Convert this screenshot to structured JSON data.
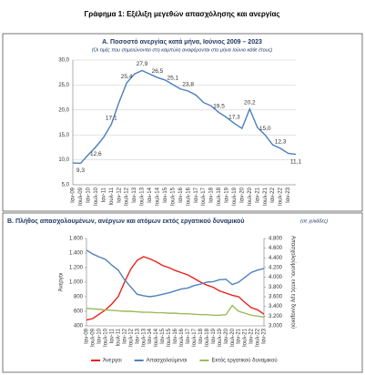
{
  "page_title": "Γράφημα 1: Εξέλιξη μεγεθών απασχόλησης και ανεργίας",
  "chart_data": [
    {
      "type": "line",
      "title": "Α. Ποσοστό ανεργίας κατά μήνα, Ιούνιος 2009 – 2023",
      "subtitle": "(Οι τιμές που σημειώνονται στη καμπύλη αναφέρονται στο μήνα Ιούνιο κάθε έτους)",
      "categories": [
        "Ιαν-09",
        "Ιουλ-09",
        "Ιαν-10",
        "Ιουλ-10",
        "Ιαν-11",
        "Ιουλ-11",
        "Ιαν-12",
        "Ιουλ-12",
        "Ιαν-13",
        "Ιουλ-13",
        "Ιαν-14",
        "Ιουλ-14",
        "Ιαν-15",
        "Ιουλ-15",
        "Ιαν-16",
        "Ιουλ-16",
        "Ιαν-17",
        "Ιουλ-17",
        "Ιαν-18",
        "Ιουλ-18",
        "Ιαν-19",
        "Ιουλ-19",
        "Ιαν-20",
        "Ιουλ-20",
        "Ιαν-21",
        "Ιουλ-21",
        "Ιαν-22",
        "Ιουλ-22",
        "Ιαν-23",
        null
      ],
      "series": [
        {
          "color": "#4a7ebb",
          "values": [
            9.4,
            9.3,
            11.0,
            12.6,
            14.5,
            17.1,
            21.5,
            25.4,
            27.2,
            27.9,
            27.2,
            26.5,
            26.0,
            25.1,
            24.2,
            23.8,
            23.0,
            21.5,
            20.8,
            19.5,
            18.5,
            17.3,
            16.3,
            20.2,
            16.5,
            15.0,
            13.0,
            12.3,
            11.3,
            11.1
          ],
          "value_labels": [
            null,
            "9,3",
            null,
            "12,6",
            null,
            "17,1",
            null,
            "25,4",
            null,
            "27,9",
            null,
            "26,5",
            null,
            "25,1",
            null,
            "23,8",
            null,
            null,
            null,
            "19,5",
            null,
            "17,3",
            null,
            "20,2",
            null,
            "15,0",
            null,
            "12,3",
            null,
            "11,1"
          ]
        }
      ],
      "ylim": [
        5,
        30
      ],
      "yticks": [
        {
          "value": 5,
          "label": "5,0"
        },
        {
          "value": 10,
          "label": "10,0"
        },
        {
          "value": 15,
          "label": "15,0"
        },
        {
          "value": 20,
          "label": "20,0"
        },
        {
          "value": 25,
          "label": "25,0"
        },
        {
          "value": 30,
          "label": "30,0"
        }
      ],
      "grid": true
    },
    {
      "type": "line",
      "title": "Β. Πλήθος απασχολουμένων, ανέργων και ατόμων εκτός εργατικού δυναμικού",
      "subtitle": "(σε χιλιάδες)",
      "y_label": "Άνεργοι",
      "y2_label": "Απασχολούμενοι, εκτός εργ δυναμικού",
      "categories": [
        "Ιαν-09",
        "Ιουλ-09",
        "Ιαν-10",
        "Ιουλ-10",
        "Ιαν-11",
        "Ιουλ-11",
        "Ιαν-12",
        "Ιουλ-12",
        "Ιαν-13",
        "Ιουλ-13",
        "Ιαν-14",
        "Ιουλ-14",
        "Ιαν-15",
        "Ιουλ-15",
        "Ιαν-16",
        "Ιουλ-16",
        "Ιαν-17",
        "Ιουλ-17",
        "Ιαν-18",
        "Ιουλ-18",
        "Ιαν-19",
        "Ιουλ-19",
        "Ιαν-20",
        "Ιουλ-20",
        "Ιαν-21",
        "Ιουλ-21",
        "Ιαν-22",
        "Ιουλ-22",
        "Ιαν-23"
      ],
      "series": [
        {
          "name": "Άνεργοι",
          "color": "#e8211a",
          "values": [
            480,
            500,
            560,
            620,
            700,
            800,
            1000,
            1180,
            1300,
            1350,
            1320,
            1280,
            1230,
            1200,
            1160,
            1130,
            1100,
            1050,
            1000,
            960,
            930,
            880,
            850,
            820,
            800,
            720,
            650,
            620,
            560
          ]
        },
        {
          "name": "Απασχολούμενοι",
          "color": "#4f81bd",
          "axis": "y2",
          "values": [
            4560,
            4480,
            4420,
            4370,
            4250,
            4150,
            3950,
            3800,
            3650,
            3620,
            3600,
            3620,
            3650,
            3680,
            3720,
            3760,
            3780,
            3830,
            3860,
            3900,
            3910,
            3950,
            3960,
            3850,
            3900,
            4000,
            4100,
            4150,
            4180
          ]
        },
        {
          "name": "Εκτός εργατικού δυναμικού",
          "color": "#9bbb59",
          "axis": "y2",
          "values": [
            3360,
            3350,
            3340,
            3330,
            3320,
            3310,
            3300,
            3300,
            3290,
            3280,
            3280,
            3270,
            3270,
            3260,
            3260,
            3250,
            3250,
            3240,
            3230,
            3230,
            3220,
            3220,
            3230,
            3420,
            3300,
            3260,
            3220,
            3200,
            3180
          ]
        }
      ],
      "ylim": [
        400,
        1600
      ],
      "yticks": [
        400,
        600,
        800,
        {
          "value": 1000,
          "label": "1.000"
        },
        {
          "value": 1200,
          "label": "1.200"
        },
        {
          "value": 1400,
          "label": "1.400"
        },
        {
          "value": 1600,
          "label": "1.600"
        }
      ],
      "y2lim": [
        3000,
        4800
      ],
      "y2ticks": [
        {
          "value": 3000,
          "label": "3.000"
        },
        {
          "value": 3200,
          "label": "3.200"
        },
        {
          "value": 3400,
          "label": "3.400"
        },
        {
          "value": 3600,
          "label": "3.600"
        },
        {
          "value": 3800,
          "label": "3.800"
        },
        {
          "value": 4000,
          "label": "4.000"
        },
        {
          "value": 4200,
          "label": "4.200"
        },
        {
          "value": 4400,
          "label": "4.400"
        },
        {
          "value": 4600,
          "label": "4.600"
        },
        {
          "value": 4800,
          "label": "4.800"
        }
      ],
      "grid": false,
      "legend": "bottom"
    }
  ]
}
